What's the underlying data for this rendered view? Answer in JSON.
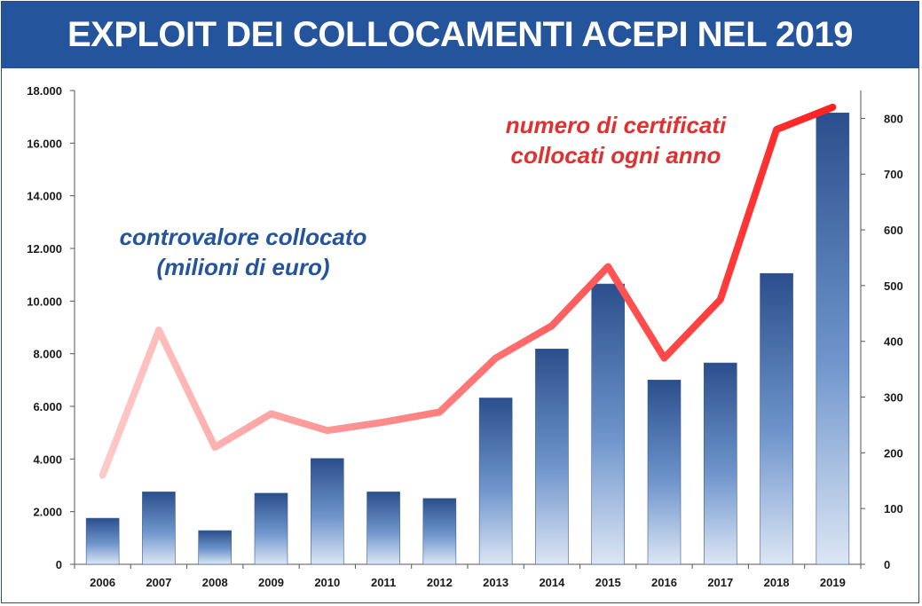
{
  "title": "EXPLOIT DEI COLLOCAMENTI ACEPI NEL 2019",
  "colors": {
    "title_bar": "#24559c",
    "bar_top": "#2a4f8c",
    "bar_bottom": "#dce6f4",
    "line_start": "#fdd0d0",
    "line_end": "#ff1a1a",
    "anno_blue": "#24559c",
    "anno_red": "#e03030"
  },
  "chart_data": {
    "type": "bar",
    "categories": [
      "2006",
      "2007",
      "2008",
      "2009",
      "2010",
      "2011",
      "2012",
      "2013",
      "2014",
      "2015",
      "2016",
      "2017",
      "2018",
      "2019"
    ],
    "series": [
      {
        "name": "controvalore collocato (milioni di euro)",
        "type": "bar",
        "axis": "left",
        "values": [
          1750,
          2750,
          1280,
          2700,
          4020,
          2750,
          2500,
          6320,
          8180,
          10650,
          7000,
          7650,
          11050,
          17150
        ]
      },
      {
        "name": "numero di certificati collocati ogni anno",
        "type": "line",
        "axis": "right",
        "values": [
          160,
          420,
          210,
          270,
          240,
          255,
          273,
          370,
          428,
          534,
          370,
          475,
          780,
          820
        ]
      }
    ],
    "y_left": {
      "ylim": [
        0,
        18000
      ],
      "ticks": [
        0,
        2000,
        4000,
        6000,
        8000,
        10000,
        12000,
        14000,
        16000,
        18000
      ],
      "tick_labels": [
        "0",
        "2.000",
        "4.000",
        "6.000",
        "8.000",
        "10.000",
        "12.000",
        "14.000",
        "16.000",
        "18.000"
      ]
    },
    "y_right": {
      "ylim": [
        0,
        850
      ],
      "ticks": [
        0,
        100,
        200,
        300,
        400,
        500,
        600,
        700,
        800
      ],
      "tick_labels": [
        "0",
        "100",
        "200",
        "300",
        "400",
        "500",
        "600",
        "700",
        "800"
      ]
    },
    "annotations": [
      {
        "lines": [
          "controvalore collocato",
          "(milioni di euro)"
        ],
        "color": "blue"
      },
      {
        "lines": [
          "numero di certificati",
          "collocati ogni anno"
        ],
        "color": "red"
      }
    ],
    "grid": false,
    "legend": "none"
  }
}
